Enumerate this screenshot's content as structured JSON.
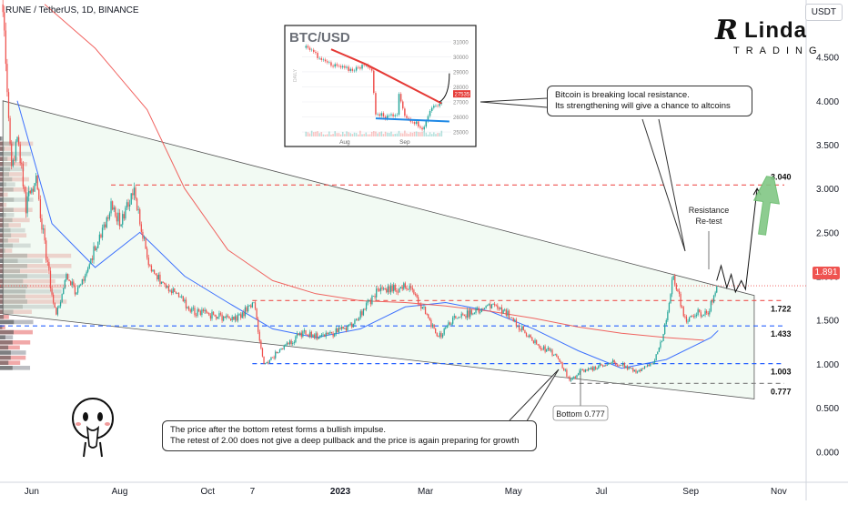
{
  "header": {
    "symbol": "RUNE / TetherUS, 1D, BINANCE",
    "currency": "USDT",
    "last_price": "1.891"
  },
  "logo": {
    "mark": "R",
    "name": "Linda",
    "sub": "TRADING"
  },
  "annotations": {
    "btc_note": "Bitcoin is breaking local resistance.\nIts strengthening will give a chance to altcoins",
    "impulse_note": "The price after the bottom retest forms a bullish impulse.\nThe retest of 2.00 does not give a deep pullback and the price is again preparing for growth",
    "resistance_label": "Resistance\nRe-test",
    "bottom_label": "Bottom 0.777"
  },
  "colors": {
    "up": "#26a69a",
    "down": "#ef5350",
    "ma_fast": "#2962ff",
    "ma_slow": "#ef5350",
    "channel_fill": "#e8f5e9",
    "arrow_fill": "#81c784"
  },
  "chart_data": [
    {
      "type": "line",
      "title": "RUNE / TetherUS, 1D, BINANCE",
      "y_scale": "linear",
      "ylim": [
        -0.35,
        5.15
      ],
      "y_ticks": [
        0.0,
        0.5,
        1.0,
        1.5,
        2.0,
        2.5,
        3.0,
        3.5,
        4.0,
        4.5
      ],
      "y_tick_labels": [
        "0.000",
        "0.500",
        "1.000",
        "1.500",
        "2.000",
        "2.500",
        "3.000",
        "3.500",
        "4.000",
        "4.500"
      ],
      "xlim": [
        "2022-05-10",
        "2023-11-20"
      ],
      "x_ticks": [
        {
          "date": "2022-06-01",
          "label": "Jun"
        },
        {
          "date": "2022-08-01",
          "label": "Aug"
        },
        {
          "date": "2022-10-01",
          "label": "Oct"
        },
        {
          "date": "2022-11-01",
          "label": "7"
        },
        {
          "date": "2023-01-01",
          "label": "2023"
        },
        {
          "date": "2023-03-01",
          "label": "Mar"
        },
        {
          "date": "2023-05-01",
          "label": "May"
        },
        {
          "date": "2023-07-01",
          "label": "Jul"
        },
        {
          "date": "2023-09-01",
          "label": "Sep"
        },
        {
          "date": "2023-11-01",
          "label": "Nov"
        }
      ],
      "price_path": [
        [
          "2022-05-12",
          5.1
        ],
        [
          "2022-05-14",
          4.3
        ],
        [
          "2022-05-18",
          3.2
        ],
        [
          "2022-05-22",
          3.6
        ],
        [
          "2022-05-28",
          2.8
        ],
        [
          "2022-06-04",
          3.1
        ],
        [
          "2022-06-12",
          2.1
        ],
        [
          "2022-06-18",
          1.55
        ],
        [
          "2022-06-25",
          2.0
        ],
        [
          "2022-07-02",
          1.8
        ],
        [
          "2022-07-12",
          2.2
        ],
        [
          "2022-07-20",
          2.5
        ],
        [
          "2022-07-26",
          2.8
        ],
        [
          "2022-08-02",
          2.6
        ],
        [
          "2022-08-10",
          3.0
        ],
        [
          "2022-08-14",
          2.7
        ],
        [
          "2022-08-22",
          2.1
        ],
        [
          "2022-09-01",
          1.9
        ],
        [
          "2022-09-10",
          1.8
        ],
        [
          "2022-09-20",
          1.6
        ],
        [
          "2022-10-05",
          1.55
        ],
        [
          "2022-10-20",
          1.5
        ],
        [
          "2022-11-02",
          1.7
        ],
        [
          "2022-11-09",
          1.0
        ],
        [
          "2022-11-20",
          1.15
        ],
        [
          "2022-12-05",
          1.35
        ],
        [
          "2022-12-20",
          1.3
        ],
        [
          "2023-01-10",
          1.45
        ],
        [
          "2023-01-25",
          1.8
        ],
        [
          "2023-02-05",
          1.85
        ],
        [
          "2023-02-15",
          1.9
        ],
        [
          "2023-02-25",
          1.7
        ],
        [
          "2023-03-10",
          1.3
        ],
        [
          "2023-03-20",
          1.5
        ],
        [
          "2023-04-05",
          1.6
        ],
        [
          "2023-04-18",
          1.7
        ],
        [
          "2023-05-01",
          1.5
        ],
        [
          "2023-05-15",
          1.25
        ],
        [
          "2023-05-30",
          1.1
        ],
        [
          "2023-06-10",
          0.8
        ],
        [
          "2023-06-15",
          0.9
        ],
        [
          "2023-06-25",
          0.95
        ],
        [
          "2023-07-10",
          1.02
        ],
        [
          "2023-07-25",
          0.92
        ],
        [
          "2023-08-05",
          1.0
        ],
        [
          "2023-08-12",
          1.25
        ],
        [
          "2023-08-20",
          2.0
        ],
        [
          "2023-08-28",
          1.5
        ],
        [
          "2023-09-05",
          1.6
        ],
        [
          "2023-09-12",
          1.55
        ],
        [
          "2023-09-19",
          1.891
        ]
      ],
      "moving_averages": [
        {
          "color": "#2962ff",
          "values": [
            [
              "2022-05-22",
              4.0
            ],
            [
              "2022-06-15",
              2.6
            ],
            [
              "2022-07-15",
              2.1
            ],
            [
              "2022-08-15",
              2.5
            ],
            [
              "2022-09-15",
              2.0
            ],
            [
              "2022-10-15",
              1.7
            ],
            [
              "2022-11-15",
              1.4
            ],
            [
              "2022-12-15",
              1.3
            ],
            [
              "2023-01-15",
              1.4
            ],
            [
              "2023-02-15",
              1.65
            ],
            [
              "2023-03-15",
              1.7
            ],
            [
              "2023-04-15",
              1.6
            ],
            [
              "2023-05-15",
              1.4
            ],
            [
              "2023-06-15",
              1.15
            ],
            [
              "2023-07-15",
              0.95
            ],
            [
              "2023-08-15",
              1.05
            ],
            [
              "2023-09-15",
              1.3
            ],
            [
              "2023-09-20",
              1.38
            ]
          ]
        },
        {
          "color": "#ef5350",
          "values": [
            [
              "2022-06-10",
              5.1
            ],
            [
              "2022-07-15",
              4.6
            ],
            [
              "2022-08-20",
              3.9
            ],
            [
              "2022-09-15",
              3.0
            ],
            [
              "2022-10-15",
              2.3
            ],
            [
              "2022-11-15",
              1.95
            ],
            [
              "2022-12-15",
              1.8
            ],
            [
              "2023-01-15",
              1.72
            ],
            [
              "2023-02-15",
              1.7
            ],
            [
              "2023-03-15",
              1.66
            ],
            [
              "2023-04-15",
              1.6
            ],
            [
              "2023-05-15",
              1.52
            ],
            [
              "2023-06-15",
              1.42
            ],
            [
              "2023-07-15",
              1.35
            ],
            [
              "2023-08-15",
              1.3
            ],
            [
              "2023-09-10",
              1.27
            ]
          ]
        }
      ],
      "levels": [
        {
          "value": 3.04,
          "label": "3.040",
          "color": "#ef5350",
          "from": "2022-07-26"
        },
        {
          "value": 1.722,
          "label": "1.722",
          "color": "#ef5350",
          "from": "2022-11-01"
        },
        {
          "value": 1.433,
          "label": "1.433",
          "color": "#2962ff",
          "from": "2022-05-10"
        },
        {
          "value": 1.003,
          "label": "1.003",
          "color": "#2962ff",
          "from": "2022-11-01"
        },
        {
          "value": 0.777,
          "label": "0.777",
          "color": "#888888",
          "from": "2023-06-10"
        }
      ],
      "channel": {
        "upper": [
          [
            "2022-05-12",
            4.0
          ],
          [
            "2023-10-15",
            1.78
          ]
        ],
        "lower": [
          [
            "2022-05-12",
            1.57
          ],
          [
            "2023-10-15",
            0.6
          ]
        ]
      },
      "projection": [
        [
          "2023-09-19",
          1.95
        ],
        [
          "2023-09-22",
          2.12
        ],
        [
          "2023-09-26",
          1.87
        ],
        [
          "2023-09-29",
          2.02
        ],
        [
          "2023-10-02",
          1.82
        ],
        [
          "2023-10-06",
          1.95
        ],
        [
          "2023-10-09",
          1.85
        ],
        [
          "2023-10-17",
          3.0
        ]
      ],
      "last_price": 1.891
    },
    {
      "type": "line",
      "title": "BTC/USD",
      "y_ticks": [
        25000,
        26000,
        27000,
        28000,
        29000,
        30000,
        31000
      ],
      "y_tick_labels": [
        "25000",
        "26000",
        "27000",
        "28000",
        "29000",
        "30000",
        "31000"
      ],
      "ylim": [
        24700,
        31600
      ],
      "x_ticks": [
        {
          "date": "2023-08-01",
          "label": "Aug"
        },
        {
          "date": "2023-09-01",
          "label": "Sep"
        }
      ],
      "xlim": [
        "2023-07-10",
        "2023-09-25"
      ],
      "price_path": [
        [
          "2023-07-12",
          30600
        ],
        [
          "2023-07-15",
          30300
        ],
        [
          "2023-07-20",
          29900
        ],
        [
          "2023-07-25",
          29400
        ],
        [
          "2023-07-30",
          29300
        ],
        [
          "2023-08-05",
          29100
        ],
        [
          "2023-08-10",
          29450
        ],
        [
          "2023-08-15",
          29200
        ],
        [
          "2023-08-17",
          26300
        ],
        [
          "2023-08-22",
          26000
        ],
        [
          "2023-08-28",
          26100
        ],
        [
          "2023-08-29",
          27700
        ],
        [
          "2023-09-01",
          25900
        ],
        [
          "2023-09-05",
          25750
        ],
        [
          "2023-09-11",
          25200
        ],
        [
          "2023-09-14",
          26500
        ],
        [
          "2023-09-18",
          26800
        ],
        [
          "2023-09-20",
          27100
        ]
      ],
      "last_price_label": "27535",
      "side_label": "DAILY"
    }
  ]
}
